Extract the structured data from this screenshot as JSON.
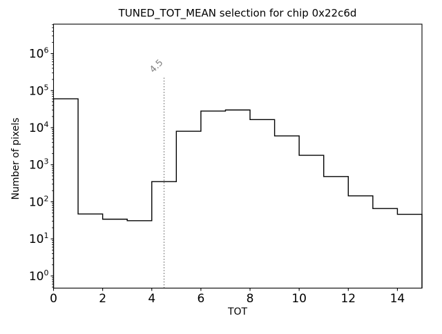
{
  "chart_data": {
    "type": "step-histogram",
    "title": "TUNED_TOT_MEAN selection for chip 0x22c6d",
    "xlabel": "TOT",
    "ylabel": "Number of pixels",
    "yscale": "log",
    "grid": false,
    "legend": null,
    "bin_edges": [
      0,
      1,
      2,
      3,
      4,
      5,
      6,
      7,
      8,
      9,
      10,
      11,
      12,
      13,
      14,
      15
    ],
    "counts": [
      60000,
      47,
      34,
      31,
      350,
      8000,
      28000,
      30000,
      16500,
      6000,
      1800,
      480,
      145,
      66,
      46
    ],
    "xlim": [
      0,
      15
    ],
    "ylim": [
      0.47,
      6200000
    ],
    "xticks": [
      0,
      2,
      4,
      6,
      8,
      10,
      12,
      14
    ],
    "xtick_labels": [
      "0",
      "2",
      "4",
      "6",
      "8",
      "10",
      "12",
      "14"
    ],
    "ytick_exponents": [
      0,
      1,
      2,
      3,
      4,
      5,
      6
    ],
    "ytick_base": "10",
    "line_color": "#000000",
    "background_color": "#ffffff",
    "vline": {
      "x": 4.5,
      "label": "4.5",
      "color": "#7f7f7f",
      "style": "dotted",
      "label_rotation_deg": -45
    }
  }
}
